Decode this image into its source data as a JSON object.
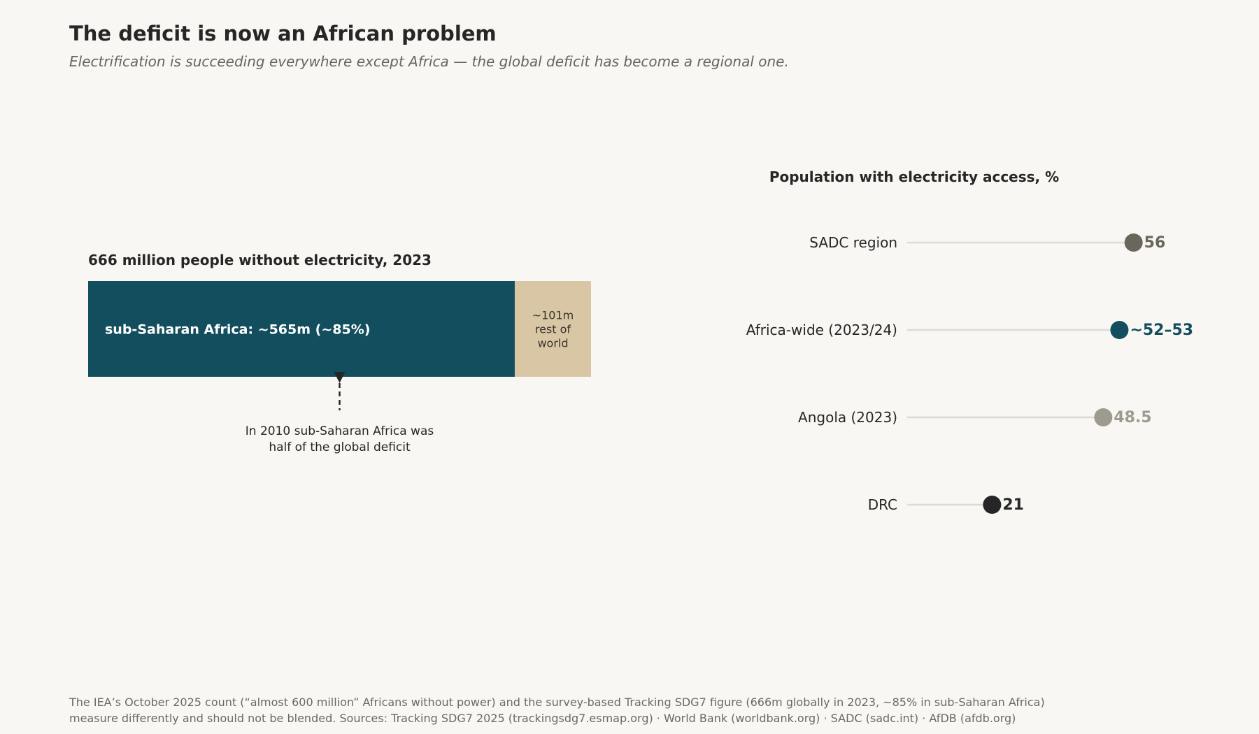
{
  "header": {
    "title": "The deficit is now an African problem",
    "subtitle": "Electrification is succeeding everywhere except Africa — the global deficit has become a regional one."
  },
  "chart_data": [
    {
      "type": "bar",
      "orientation": "horizontal-stacked",
      "title": "666 million people without electricity, 2023",
      "total": 666,
      "unit": "million people",
      "segments": [
        {
          "name": "sub-Saharan Africa",
          "value": 565,
          "label": "sub-Saharan Africa: ~565m (~85%)",
          "color": "#134e5e"
        },
        {
          "name": "rest of world",
          "value": 101,
          "label_lines": [
            "~101m",
            "rest of",
            "world"
          ],
          "color": "#d9c6a5"
        }
      ],
      "annotation": {
        "at_value": 333,
        "lines": [
          "In 2010 sub-Saharan Africa was",
          "half of the global deficit"
        ]
      }
    },
    {
      "type": "scatter",
      "style": "dot-plot",
      "title": "Population with electricity access, %",
      "xlim": [
        0,
        100
      ],
      "points": [
        {
          "category": "SADC region",
          "value": 56,
          "label": "56",
          "color": "#6b665c"
        },
        {
          "category": "Africa-wide (2023/24)",
          "value": 52.5,
          "label": "~52–53",
          "color": "#134e5e"
        },
        {
          "category": "Angola (2023)",
          "value": 48.5,
          "label": "48.5",
          "color": "#9e9a90"
        },
        {
          "category": "DRC",
          "value": 21,
          "label": "21",
          "color": "#262626"
        }
      ]
    }
  ],
  "footer": {
    "lines": [
      "The IEA’s October 2025 count (“almost 600 million” Africans without power) and the survey-based Tracking SDG7 figure (666m globally in 2023, ~85% in sub-Saharan Africa)",
      "measure differently and should not be blended. Sources: Tracking SDG7 2025 (trackingsdg7.esmap.org) · World Bank (worldbank.org) · SADC (sadc.int) · AfDB (afdb.org)"
    ]
  }
}
